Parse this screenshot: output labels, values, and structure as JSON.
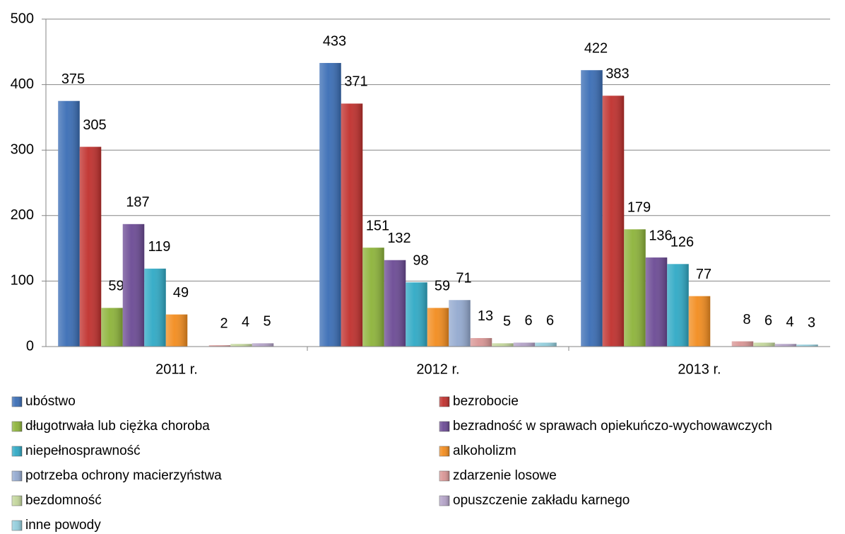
{
  "chart_data": {
    "type": "bar",
    "categories": [
      "2011 r.",
      "2012 r.",
      "2013 r."
    ],
    "series": [
      {
        "name": "ubóstwo",
        "color": "#3a6db5",
        "values": [
          375,
          433,
          422
        ]
      },
      {
        "name": "bezrobocie",
        "color": "#c0302d",
        "values": [
          305,
          371,
          383
        ]
      },
      {
        "name": "długotrwała lub ciężka choroba",
        "color": "#8db33a",
        "values": [
          59,
          151,
          179
        ]
      },
      {
        "name": "bezradność w sprawach opiekuńczo-wychowawczych",
        "color": "#6b4a94",
        "values": [
          187,
          132,
          136
        ]
      },
      {
        "name": "niepełnosprawność",
        "color": "#2fa9c5",
        "values": [
          119,
          98,
          126
        ]
      },
      {
        "name": "alkoholizm",
        "color": "#f28c1e",
        "values": [
          49,
          59,
          77
        ]
      },
      {
        "name": "potrzeba ochrony macierzyństwa",
        "color": "#93a9cf",
        "values": [
          null,
          71,
          null
        ]
      },
      {
        "name": "zdarzenie losowe",
        "color": "#d99594",
        "values": [
          2,
          13,
          8
        ]
      },
      {
        "name": "bezdomność",
        "color": "#c3d69b",
        "values": [
          4,
          5,
          6
        ]
      },
      {
        "name": "opuszczenie zakładu karnego",
        "color": "#b3a2c7",
        "values": [
          5,
          6,
          4
        ]
      },
      {
        "name": "inne powody",
        "color": "#92cddc",
        "values": [
          null,
          6,
          3
        ]
      }
    ],
    "ylim": [
      0,
      500
    ],
    "yticks": [
      0,
      100,
      200,
      300,
      400,
      500
    ],
    "grid": true,
    "legend": "bottom"
  }
}
